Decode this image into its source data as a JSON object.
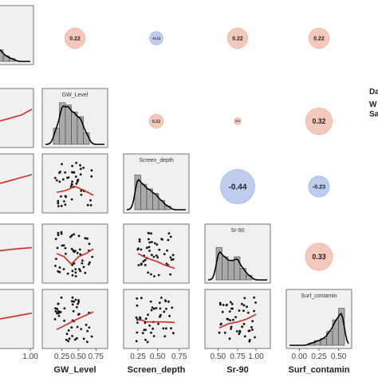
{
  "chart_data": {
    "type": "scatter",
    "variables": [
      "GW_Level",
      "Screen_depth",
      "Sr-90",
      "Surf_contamin"
    ],
    "x_tick_labels": {
      "col0": [
        "1.00"
      ],
      "GW_Level": [
        "0.25",
        "0.50",
        "0.75"
      ],
      "Screen_depth": [
        "0.25",
        "0.50",
        "0.75"
      ],
      "Sr-90": [
        "0.50",
        "0.75",
        "1.00"
      ],
      "Surf_contamin": [
        "0.00",
        "0.25",
        "0.50"
      ]
    },
    "correlations": [
      {
        "row": 0,
        "col": 1,
        "value": 0.22,
        "label": "0.22"
      },
      {
        "row": 0,
        "col": 2,
        "value": -0.11,
        "label": "-0.11"
      },
      {
        "row": 0,
        "col": 3,
        "value": 0.22,
        "label": "0.22"
      },
      {
        "row": 0,
        "col": 4,
        "value": 0.22,
        "label": "0.22"
      },
      {
        "row": 1,
        "col": 2,
        "value": 0.12,
        "label": "0.12"
      },
      {
        "row": 1,
        "col": 3,
        "value": 0.01,
        "label": "0.01"
      },
      {
        "row": 1,
        "col": 4,
        "value": 0.32,
        "label": "0.32"
      },
      {
        "row": 2,
        "col": 3,
        "value": -0.44,
        "label": "-0.44"
      },
      {
        "row": 2,
        "col": 4,
        "value": -0.23,
        "label": "-0.23"
      },
      {
        "row": 3,
        "col": 4,
        "value": 0.33,
        "label": "0.33"
      }
    ],
    "colors": {
      "positive": "#e8866a",
      "negative": "#6f8fd8",
      "panel": "#f0f0f0",
      "trend": "#d42a20",
      "points": "#111111"
    },
    "right_margin_text": [
      "Da",
      "W",
      "Sa"
    ]
  }
}
